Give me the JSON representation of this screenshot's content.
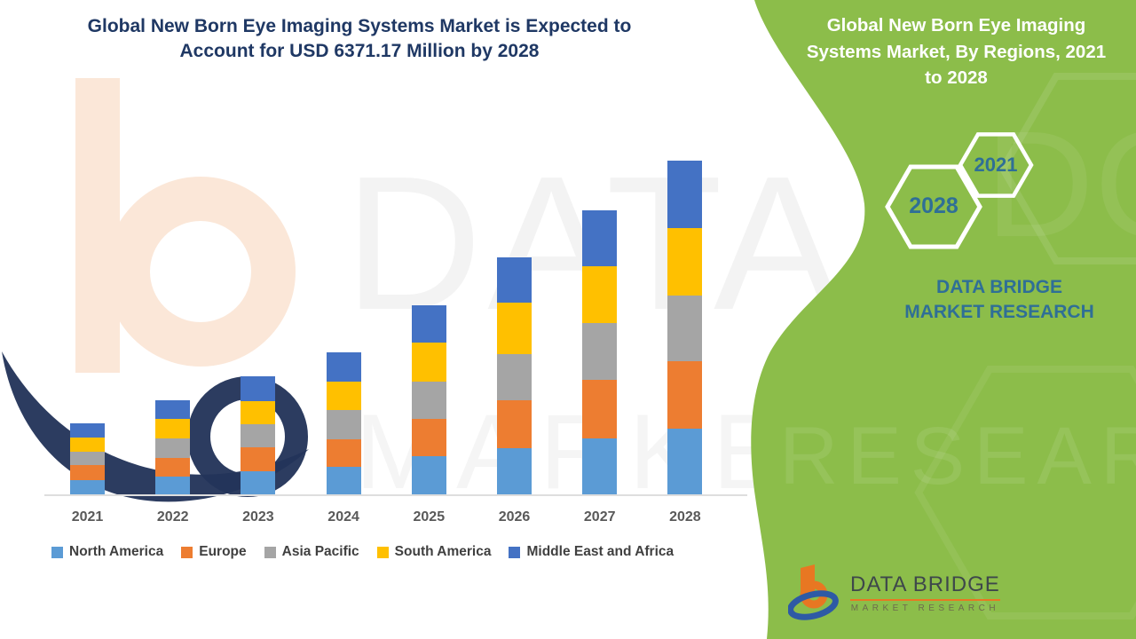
{
  "header": {
    "title": "Global New Born Eye Imaging Systems Market is Expected to Account for USD 6371.17 Million by 2028"
  },
  "right_panel": {
    "title": "Global New Born Eye Imaging Systems Market, By Regions, 2021 to 2028",
    "hexagons": [
      {
        "label": "2028"
      },
      {
        "label": "2021"
      }
    ],
    "brand": "DATA BRIDGE MARKET RESEARCH"
  },
  "footer_logo": {
    "name": "DATA BRIDGE",
    "subtitle": "MARKET RESEARCH"
  },
  "watermarks": {
    "top": "DATA B",
    "mid": "MARKET",
    "green_top": "DGE",
    "green_mid": "RESEARCH"
  },
  "colors": {
    "navy": "#1F3864",
    "green": "#8CBD4A",
    "steel": "#2F6F96",
    "legend_text": "#404040",
    "axis_text": "#595959",
    "baseline": "#DEDEDE",
    "logo_orange": "#E87722",
    "logo_blue": "#2E5AA5",
    "logo_text": "#3E474B",
    "wm_navy": "#233459",
    "wm_peach": "#FBE7D8"
  },
  "chart_data": {
    "type": "bar",
    "stacked": true,
    "title": "Global New Born Eye Imaging Systems Market, By Regions, 2021 to 2028",
    "unit": "USD Million",
    "categories": [
      "2021",
      "2022",
      "2023",
      "2024",
      "2025",
      "2026",
      "2027",
      "2028"
    ],
    "series": [
      {
        "name": "North America",
        "color": "#5B9BD5",
        "values": [
          282,
          349,
          461,
          546,
          744,
          901,
          1087,
          1274
        ]
      },
      {
        "name": "Europe",
        "color": "#ED7D31",
        "values": [
          292,
          367,
          451,
          524,
          715,
          912,
          1110,
          1274
        ]
      },
      {
        "name": "Asia Pacific",
        "color": "#A5A5A5",
        "values": [
          259,
          367,
          439,
          546,
          705,
          874,
          1087,
          1256
        ]
      },
      {
        "name": "South America",
        "color": "#FFC000",
        "values": [
          270,
          377,
          444,
          552,
          749,
          975,
          1082,
          1283
        ]
      },
      {
        "name": "Middle East and Africa",
        "color": "#4472C4",
        "values": [
          270,
          355,
          468,
          552,
          705,
          867,
          1060,
          1284
        ]
      }
    ],
    "totals": [
      1373,
      1815,
      2263,
      2720,
      3618,
      4529,
      5426,
      6371
    ],
    "values_note": "2028 total of USD 6371.17 Million is stated in the title; per-region and per-year values are estimated from bar segment heights (no y-axis shown)",
    "legend_position": "bottom",
    "axes": {
      "x_label": "",
      "y_label": "",
      "y_axis_visible": false,
      "gridlines": false
    }
  }
}
